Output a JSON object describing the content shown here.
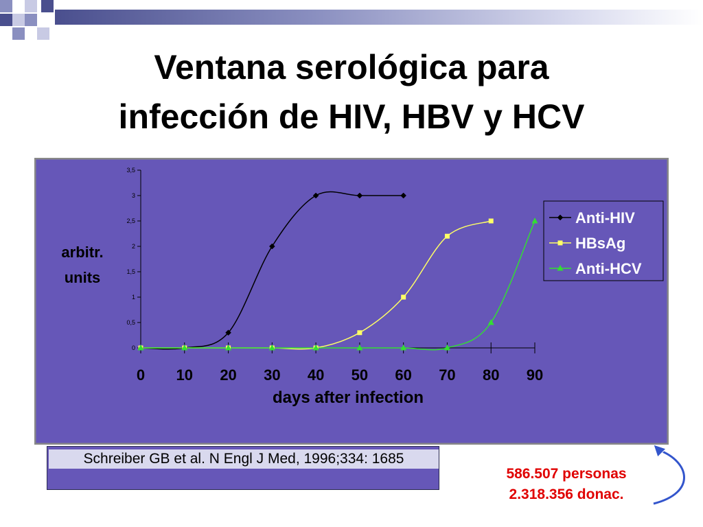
{
  "slide": {
    "title_line1": "Ventana serológica para",
    "title_line2": "infección de  HIV, HBV y HCV",
    "reference": "Schreiber GB et al. N Engl J Med, 1996;334: 1685",
    "count_line1": "586.507 personas",
    "count_line2": "2.318.356 donac."
  },
  "colors": {
    "plot_background": "#6657b8",
    "anti_hiv": "#000000",
    "hbsag": "#ffff66",
    "anti_hcv": "#33dd33",
    "count_text": "#e00000"
  },
  "chart_data": {
    "type": "line",
    "title": "",
    "xlabel": "days after infection",
    "ylabel": "arbitr. units",
    "x": [
      0,
      10,
      20,
      30,
      40,
      50,
      60,
      70,
      80,
      90
    ],
    "x_tick_labels": [
      "0",
      "10",
      "20",
      "30",
      "40",
      "50",
      "60",
      "70",
      "80",
      "90"
    ],
    "y_tick_labels": [
      "0",
      "0,5",
      "1",
      "1,5",
      "2",
      "2,5",
      "3",
      "3,5"
    ],
    "y_ticks": [
      0,
      0.5,
      1,
      1.5,
      2,
      2.5,
      3,
      3.5
    ],
    "xlim": [
      0,
      90
    ],
    "ylim": [
      0,
      3.5
    ],
    "grid": false,
    "legend_position": "right",
    "series": [
      {
        "name": "Anti-HIV",
        "marker": "diamond",
        "x": [
          0,
          10,
          20,
          30,
          40,
          50,
          60
        ],
        "values": [
          0,
          0,
          0.3,
          2,
          3,
          3,
          3
        ]
      },
      {
        "name": "HBsAg",
        "marker": "square",
        "x": [
          0,
          10,
          20,
          30,
          40,
          50,
          60,
          70,
          80
        ],
        "values": [
          0,
          0,
          0,
          0,
          0,
          0.3,
          1,
          2.2,
          2.5
        ]
      },
      {
        "name": "Anti-HCV",
        "marker": "triangle",
        "x": [
          0,
          10,
          20,
          30,
          40,
          50,
          60,
          70,
          80,
          90
        ],
        "values": [
          0,
          0,
          0,
          0,
          0,
          0,
          0,
          0,
          0.5,
          2.5
        ]
      }
    ]
  }
}
